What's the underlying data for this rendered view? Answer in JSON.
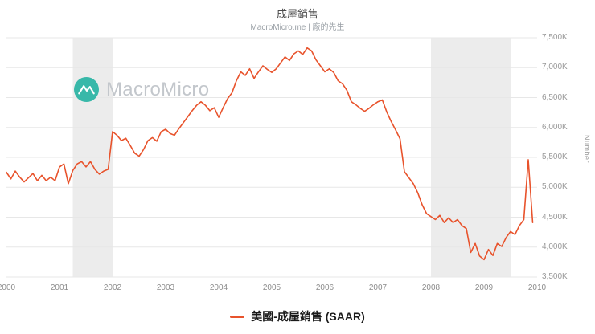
{
  "header": {
    "title": "成屋銷售",
    "subtitle": "MacroMicro.me | 廠的先生"
  },
  "watermark": {
    "brand": "MacroMicro",
    "logo_color": "#38b8a9",
    "text_color": "#c3c7cc"
  },
  "axes": {
    "y_label": "Number",
    "y_ticks": [
      "7,500K",
      "7,000K",
      "6,500K",
      "6,000K",
      "5,500K",
      "5,000K",
      "4,500K",
      "4,000K",
      "3,500K"
    ],
    "x_ticks": [
      "2000",
      "2001",
      "2002",
      "2003",
      "2004",
      "2005",
      "2006",
      "2007",
      "2008",
      "2009",
      "2010"
    ]
  },
  "legend": {
    "label": "美國-成屋銷售 (SAAR)"
  },
  "chart_data": {
    "type": "line",
    "title": "成屋銷售",
    "x_range": [
      2000,
      2010
    ],
    "ylim": [
      3500,
      7500
    ],
    "y_tick_step": 500,
    "unit": "K",
    "grid": true,
    "band_color": "#ececec",
    "grid_color": "#e7e7e7",
    "recession_bands": [
      [
        2001.25,
        2002.0
      ],
      [
        2008.0,
        2009.5
      ]
    ],
    "series": [
      {
        "name": "美國-成屋銷售 (SAAR)",
        "color": "#e8532c",
        "x_start": 2000,
        "x_step_months": 1,
        "values": [
          5250,
          5140,
          5270,
          5170,
          5090,
          5160,
          5230,
          5110,
          5200,
          5110,
          5170,
          5110,
          5340,
          5390,
          5060,
          5280,
          5390,
          5430,
          5340,
          5430,
          5300,
          5220,
          5270,
          5300,
          5930,
          5870,
          5780,
          5820,
          5700,
          5570,
          5520,
          5630,
          5780,
          5830,
          5770,
          5930,
          5970,
          5900,
          5870,
          5980,
          6080,
          6180,
          6280,
          6370,
          6430,
          6370,
          6280,
          6330,
          6170,
          6330,
          6480,
          6580,
          6780,
          6930,
          6870,
          6980,
          6820,
          6930,
          7030,
          6970,
          6920,
          6980,
          7080,
          7180,
          7120,
          7230,
          7280,
          7220,
          7330,
          7280,
          7130,
          7030,
          6930,
          6980,
          6920,
          6780,
          6730,
          6620,
          6430,
          6380,
          6320,
          6270,
          6320,
          6380,
          6430,
          6460,
          6260,
          6100,
          5960,
          5810,
          5260,
          5160,
          5060,
          4910,
          4710,
          4560,
          4510,
          4460,
          4530,
          4410,
          4490,
          4410,
          4460,
          4360,
          4310,
          3910,
          4060,
          3850,
          3790,
          3960,
          3860,
          4060,
          4010,
          4160,
          4260,
          4210,
          4360,
          4460,
          5460,
          4410
        ]
      }
    ]
  }
}
